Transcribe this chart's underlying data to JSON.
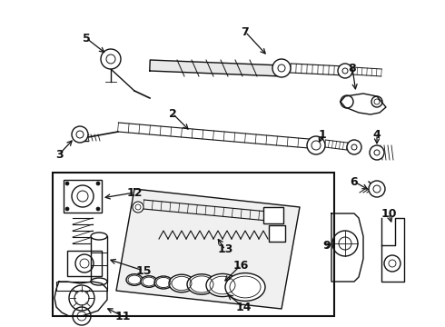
{
  "bg_color": "#ffffff",
  "fig_width": 4.9,
  "fig_height": 3.6,
  "dpi": 100,
  "image_b64": ""
}
